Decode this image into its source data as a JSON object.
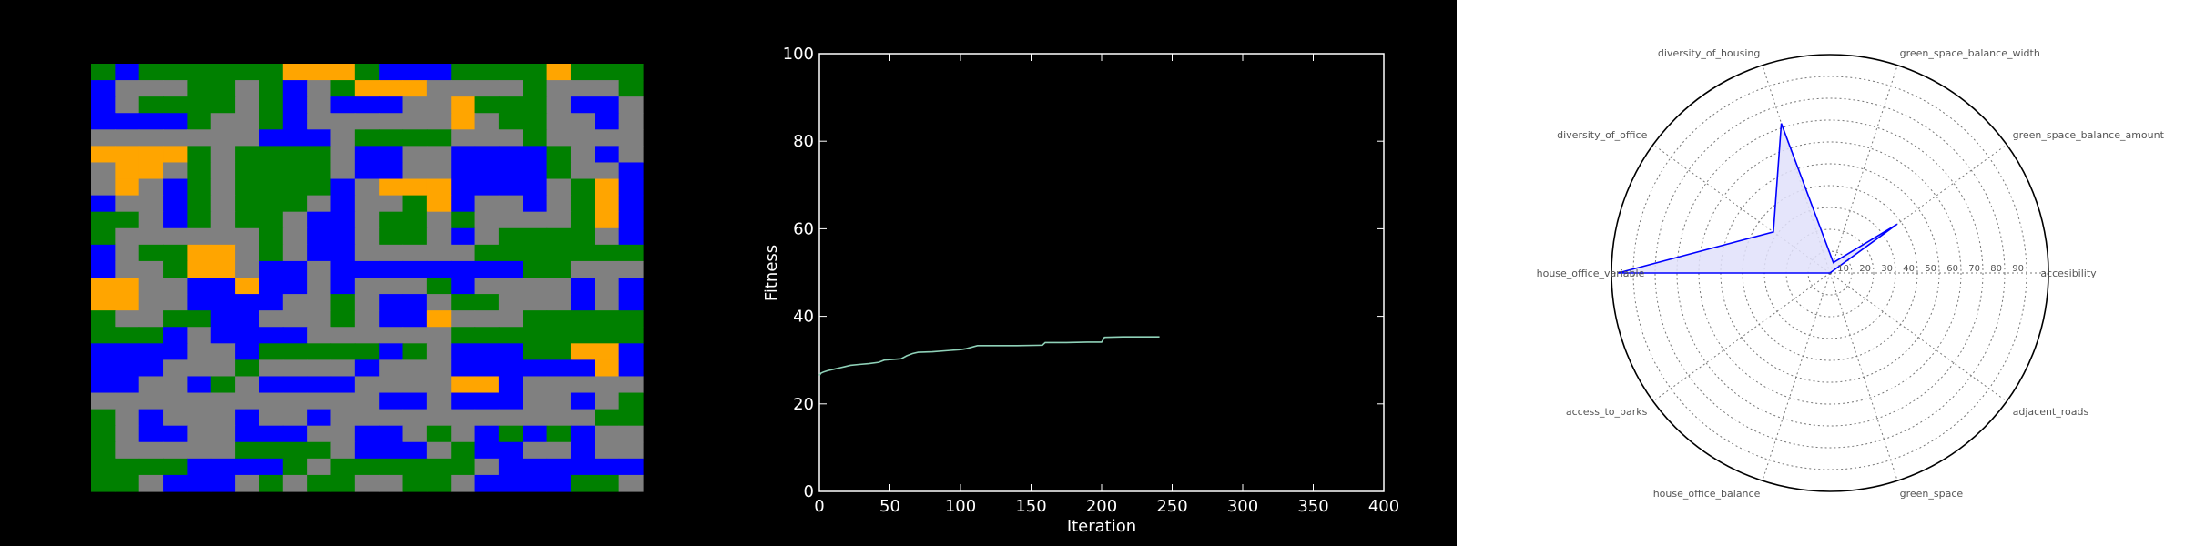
{
  "colors": {
    "background": "#000000",
    "road": "#808080",
    "green_space": "#008000",
    "housing": "#0000ff",
    "office": "#ffa500",
    "fitness_line": "#8fd1b8",
    "radar_line": "#0000ff",
    "radar_fill": "#e0e0fa"
  },
  "chart_data": [
    {
      "type": "heatmap",
      "legend": {
        "R": "road",
        "G": "green_space",
        "B": "housing",
        "O": "office"
      },
      "cells": [
        "GBGGGGGGOOOGBBBGGGGOGGG",
        "BRRRGGRGBRGOOORRRRGRRRG",
        "BRGGGGRGBRBBBRROGGGRBBR",
        "BBBBGRRGBRRRRRRORGGRRBR",
        "RRRRRRRBBBRGGGGRRRGRRRR",
        "OOOOGRGGGGRBBRRBBBBGRBR",
        "ROORGRGGGGRBBRRBBBBGRRB",
        "RORBGRGGGGBROOOBBBBRGOB",
        "BRRBGRGGGRBRRGOBRRBRGOB",
        "GGRBGRGGRBBRGGRGRRRRGOB",
        "GRRRRRRGRBBRGGRBRGGGGRB",
        "BRGGOORGRBBRRRRRGGGGGGG",
        "BRRGOORBBRBBBBBBBBGGRRR",
        "OORRBBOBBRBRRRGBRRRRBRB",
        "OORRBBBBRRGRBBRGGRRRBRB",
        "GRRGGBBRRRGRBBORRRGGGGG",
        "GGGBRBBBBRRRRRRGGGGGGGG",
        "BBBBRRBGGGGGBGRBBBGGOOB",
        "BBBRRRGRRRRBRRRBBBBBBOB",
        "BBRRBGRBBBBRRRROOBRRRRR",
        "RRRRRRRRRRRRBBRBBBRRBRG",
        "GRBRRRBRRBRRRRRRRRRRRGG",
        "GRBBRRBBBRRBBRGRBGBGBRR",
        "GRRRRRGGGGRBBBRGBBRRBRR",
        "GGGGBBBBGRGGGGGGRBBBBBB",
        "GGRBBBRGRGGRRGGRBBBBGGR"
      ]
    },
    {
      "type": "line",
      "xlabel": "Iteration",
      "ylabel": "Fitness",
      "xlim": [
        0,
        400
      ],
      "ylim": [
        0,
        100
      ],
      "xticks": [
        "0",
        "50",
        "100",
        "150",
        "200",
        "250",
        "300",
        "350",
        "400"
      ],
      "yticks": [
        "0",
        "20",
        "40",
        "60",
        "80",
        "100"
      ],
      "x": [
        0,
        1,
        3,
        6,
        10,
        14,
        18,
        22,
        28,
        35,
        42,
        46,
        50,
        58,
        62,
        66,
        70,
        80,
        92,
        100,
        104,
        112,
        125,
        140,
        158,
        160,
        175,
        190,
        200,
        202,
        215,
        230,
        241
      ],
      "y": [
        26.5,
        27.0,
        27.3,
        27.6,
        27.9,
        28.2,
        28.5,
        28.8,
        29.0,
        29.2,
        29.5,
        30.0,
        30.1,
        30.3,
        31.0,
        31.5,
        31.8,
        31.9,
        32.2,
        32.4,
        32.6,
        33.3,
        33.3,
        33.3,
        33.4,
        34.0,
        34.0,
        34.1,
        34.1,
        35.2,
        35.3,
        35.3,
        35.3
      ]
    },
    {
      "type": "radar",
      "axes": [
        "accesibility",
        "green_space_balance_amount",
        "green_space_balance_width",
        "diversity_of_housing",
        "diversity_of_office",
        "house_office_variable",
        "access_to_parks",
        "house_office_balance",
        "green_space",
        "adjacent_roads"
      ],
      "values": [
        0,
        38,
        5,
        72,
        32,
        97,
        0,
        0,
        0,
        0
      ],
      "rticks": [
        "10",
        "20",
        "30",
        "40",
        "50",
        "60",
        "70",
        "80",
        "90"
      ],
      "rlim": [
        0,
        100
      ]
    }
  ]
}
